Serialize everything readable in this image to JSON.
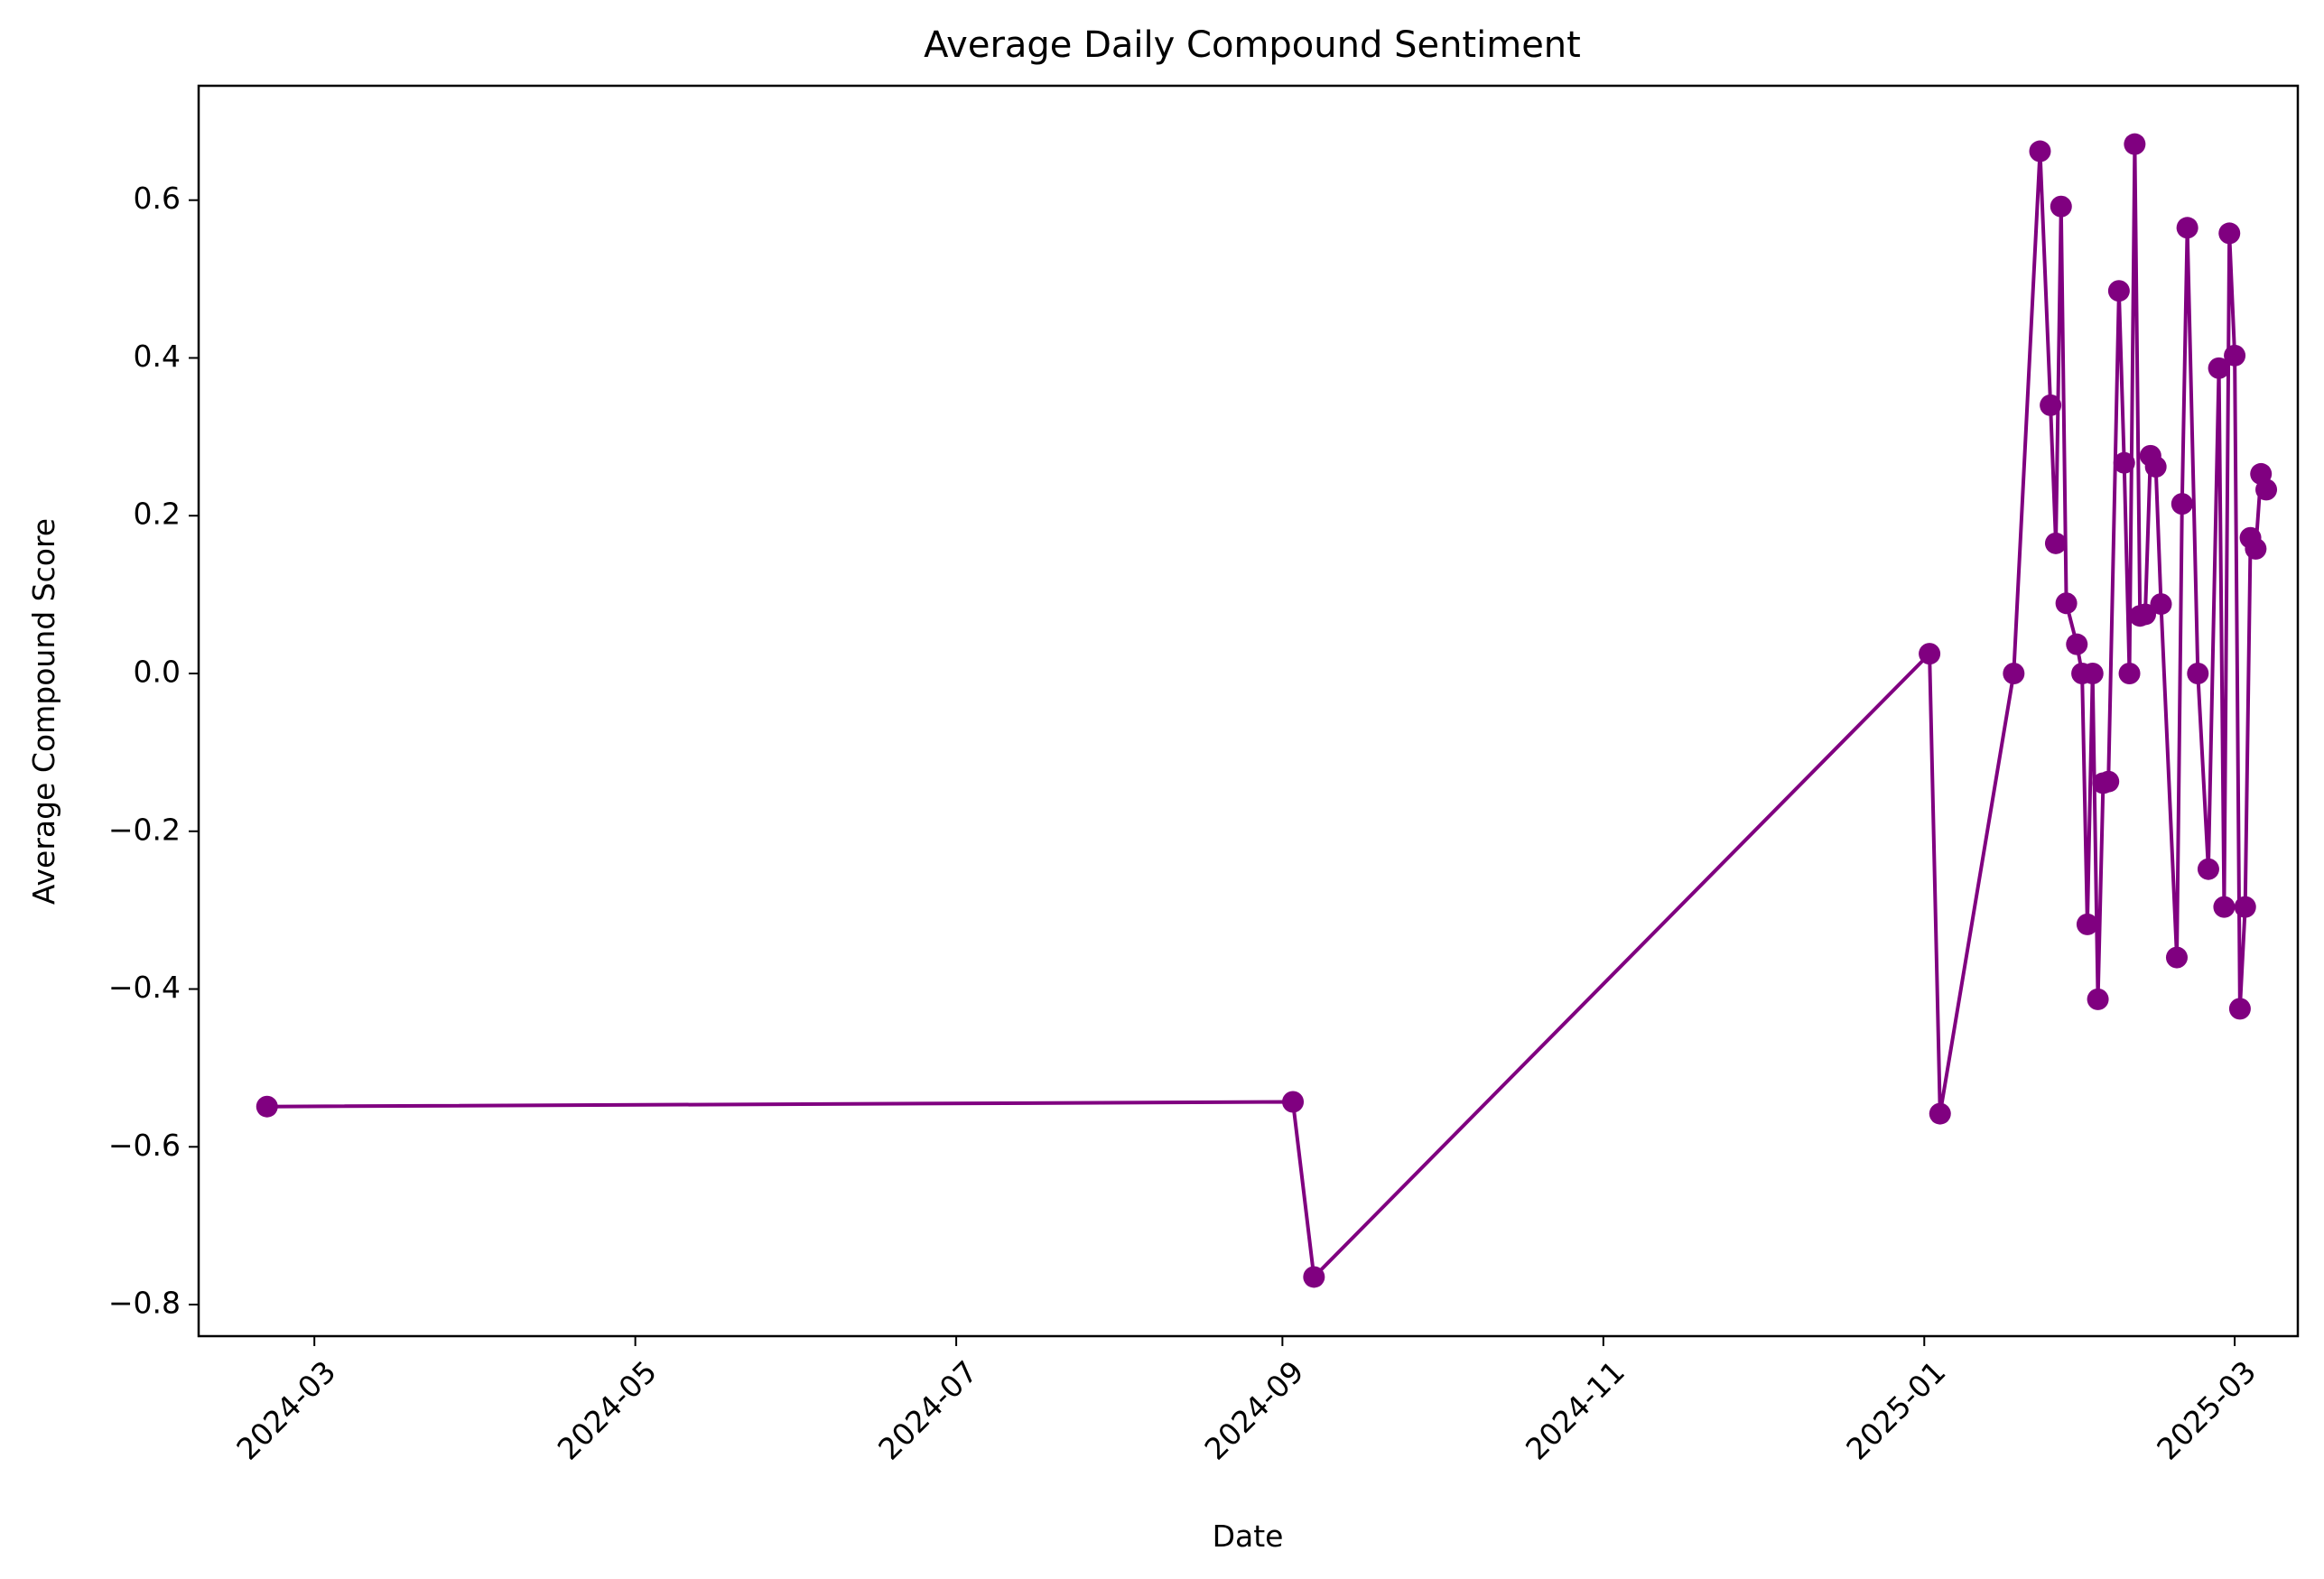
{
  "chart_data": {
    "type": "line",
    "title": "Average Daily Compound Sentiment",
    "xlabel": "Date",
    "ylabel": "Average Compound Score",
    "x_type": "date",
    "xlim": [
      "2024-02-08",
      "2025-03-13"
    ],
    "ylim": [
      -0.84,
      0.745
    ],
    "x_ticks": [
      "2024-03",
      "2024-05",
      "2024-07",
      "2024-09",
      "2024-11",
      "2025-01",
      "2025-03"
    ],
    "y_ticks": [
      "0.6",
      "0.4",
      "0.2",
      "0.0",
      "−0.2",
      "−0.4",
      "−0.6",
      "−0.8"
    ],
    "grid": false,
    "series": [
      {
        "color": "#800080",
        "marker": "circle",
        "points": [
          {
            "x": "2024-02-21",
            "y": -0.549
          },
          {
            "x": "2024-09-03",
            "y": -0.543
          },
          {
            "x": "2024-09-07",
            "y": -0.765
          },
          {
            "x": "2025-01-02",
            "y": 0.025
          },
          {
            "x": "2025-01-04",
            "y": -0.558
          },
          {
            "x": "2025-01-18",
            "y": 0.0
          },
          {
            "x": "2025-01-23",
            "y": 0.662
          },
          {
            "x": "2025-01-25",
            "y": 0.34
          },
          {
            "x": "2025-01-26",
            "y": 0.165
          },
          {
            "x": "2025-01-27",
            "y": 0.592
          },
          {
            "x": "2025-01-28",
            "y": 0.089
          },
          {
            "x": "2025-01-30",
            "y": 0.037
          },
          {
            "x": "2025-01-31",
            "y": 0.0
          },
          {
            "x": "2025-02-01",
            "y": -0.318
          },
          {
            "x": "2025-02-02",
            "y": 0.0
          },
          {
            "x": "2025-02-03",
            "y": -0.413
          },
          {
            "x": "2025-02-04",
            "y": -0.139
          },
          {
            "x": "2025-02-05",
            "y": -0.137
          },
          {
            "x": "2025-02-07",
            "y": 0.485
          },
          {
            "x": "2025-02-08",
            "y": 0.267
          },
          {
            "x": "2025-02-09",
            "y": 0.0
          },
          {
            "x": "2025-02-10",
            "y": 0.671
          },
          {
            "x": "2025-02-11",
            "y": 0.073
          },
          {
            "x": "2025-02-12",
            "y": 0.075
          },
          {
            "x": "2025-02-13",
            "y": 0.276
          },
          {
            "x": "2025-02-14",
            "y": 0.262
          },
          {
            "x": "2025-02-15",
            "y": 0.088
          },
          {
            "x": "2025-02-18",
            "y": -0.36
          },
          {
            "x": "2025-02-19",
            "y": 0.215
          },
          {
            "x": "2025-02-20",
            "y": 0.565
          },
          {
            "x": "2025-02-22",
            "y": 0.0
          },
          {
            "x": "2025-02-24",
            "y": -0.248
          },
          {
            "x": "2025-02-26",
            "y": 0.387
          },
          {
            "x": "2025-02-27",
            "y": -0.296
          },
          {
            "x": "2025-02-28",
            "y": 0.558
          },
          {
            "x": "2025-03-01",
            "y": 0.403
          },
          {
            "x": "2025-03-02",
            "y": -0.425
          },
          {
            "x": "2025-03-03",
            "y": -0.296
          },
          {
            "x": "2025-03-04",
            "y": 0.172
          },
          {
            "x": "2025-03-05",
            "y": 0.158
          },
          {
            "x": "2025-03-06",
            "y": 0.253
          },
          {
            "x": "2025-03-07",
            "y": 0.233
          }
        ]
      }
    ]
  }
}
